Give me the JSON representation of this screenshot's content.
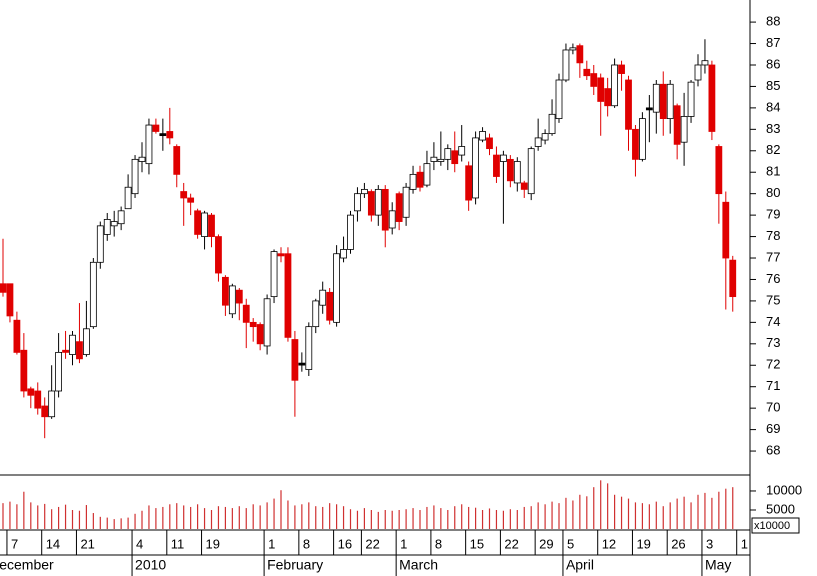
{
  "chart_data": {
    "type": "candlestick",
    "open": [
      75.8,
      75.8,
      74.1,
      72.7,
      70.9,
      70.8,
      70.1,
      69.6,
      70.8,
      72.7,
      72.5,
      73.1,
      72.5,
      73.8,
      76.8,
      78.1,
      78.5,
      78.6,
      79.3,
      80.0,
      81.5,
      81.4,
      83.2,
      82.8,
      82.9,
      82.2,
      80.1,
      79.8,
      79.2,
      78.0,
      79.0,
      78.0,
      76.1,
      74.4,
      75.5,
      74.8,
      74.0,
      73.9,
      72.9,
      75.2,
      77.2,
      77.2,
      73.2,
      72.1,
      71.8,
      73.8,
      74.8,
      75.4,
      74.0,
      77.0,
      77.4,
      79.2,
      80.0,
      80.1,
      79.0,
      80.2,
      78.4,
      80.0,
      78.9,
      80.2,
      81.0,
      80.4,
      81.5,
      81.5,
      81.6,
      82.0,
      81.8,
      81.3,
      79.8,
      82.5,
      82.6,
      81.8,
      81.5,
      81.6,
      80.5,
      80.5,
      80.0,
      82.2,
      82.5,
      82.8,
      83.5,
      85.3,
      86.7,
      86.9,
      85.8,
      85.6,
      85.4,
      84.9,
      84.1,
      86.0,
      85.3,
      83.0,
      81.6,
      84.0,
      83.8,
      85.1,
      83.5,
      84.1,
      82.4,
      83.6,
      85.3,
      86.0,
      86.0,
      82.2,
      79.6,
      76.9
    ],
    "high": [
      77.9,
      75.8,
      74.5,
      73.5,
      71.0,
      71.2,
      70.5,
      72.0,
      73.5,
      73.6,
      73.6,
      74.9,
      75.0,
      77.0,
      78.7,
      79.1,
      79.2,
      79.4,
      80.9,
      81.8,
      82.4,
      83.5,
      83.5,
      83.5,
      84.0,
      82.3,
      80.5,
      80.0,
      79.3,
      79.2,
      79.1,
      78.1,
      76.2,
      75.8,
      75.6,
      75.1,
      74.2,
      74.0,
      75.3,
      77.4,
      77.5,
      77.5,
      73.6,
      72.6,
      74.0,
      75.1,
      75.9,
      75.6,
      77.6,
      78.0,
      79.2,
      80.3,
      80.5,
      80.2,
      80.4,
      80.4,
      79.6,
      80.1,
      80.5,
      81.3,
      81.3,
      82.0,
      82.4,
      82.9,
      82.3,
      82.9,
      83.2,
      81.5,
      82.9,
      83.1,
      82.8,
      82.2,
      82.0,
      81.8,
      81.7,
      80.6,
      82.2,
      83.5,
      83.0,
      84.4,
      85.6,
      87.0,
      87.0,
      87.0,
      86.2,
      86.0,
      85.6,
      85.4,
      86.3,
      86.2,
      85.5,
      83.2,
      83.8,
      84.6,
      85.3,
      85.7,
      85.3,
      84.2,
      84.7,
      85.3,
      86.5,
      87.2,
      86.2,
      82.3,
      80.1,
      77.1
    ],
    "low": [
      75.2,
      74.0,
      72.5,
      70.5,
      70.0,
      69.7,
      68.6,
      69.5,
      70.5,
      72.3,
      72.0,
      72.1,
      72.4,
      73.7,
      76.5,
      77.8,
      78.0,
      78.3,
      79.3,
      79.8,
      81.0,
      80.9,
      82.8,
      82.0,
      82.3,
      80.3,
      78.5,
      79.0,
      77.9,
      77.4,
      77.5,
      75.9,
      74.3,
      74.2,
      74.1,
      72.8,
      73.1,
      72.7,
      72.5,
      74.9,
      76.8,
      73.1,
      69.6,
      71.7,
      71.5,
      73.5,
      74.4,
      73.9,
      73.8,
      76.8,
      77.2,
      78.7,
      79.8,
      78.7,
      78.5,
      77.5,
      78.1,
      78.3,
      78.5,
      80.0,
      80.1,
      80.3,
      81.1,
      81.3,
      81.1,
      81.0,
      81.5,
      79.2,
      79.5,
      82.4,
      81.8,
      80.5,
      78.6,
      80.3,
      80.1,
      79.8,
      79.7,
      82.0,
      82.3,
      82.7,
      83.3,
      85.2,
      86.5,
      85.4,
      85.3,
      84.6,
      82.7,
      83.6,
      84.0,
      84.8,
      82.0,
      80.8,
      81.5,
      82.4,
      82.8,
      82.7,
      82.8,
      81.6,
      81.3,
      83.3,
      85.0,
      85.6,
      82.5,
      78.6,
      74.6,
      74.5
    ],
    "close": [
      75.4,
      74.3,
      72.6,
      70.8,
      70.6,
      70.0,
      69.6,
      70.8,
      72.6,
      72.6,
      73.4,
      72.3,
      73.7,
      76.8,
      78.5,
      78.8,
      78.7,
      79.2,
      80.3,
      81.6,
      81.7,
      83.2,
      82.9,
      82.8,
      82.6,
      80.9,
      79.8,
      79.6,
      78.1,
      79.1,
      78.0,
      76.3,
      74.8,
      75.7,
      74.9,
      74.0,
      73.8,
      73.0,
      75.1,
      77.3,
      77.1,
      73.3,
      71.3,
      72.1,
      73.8,
      75.0,
      75.5,
      74.1,
      77.2,
      77.4,
      79.0,
      80.0,
      80.2,
      79.0,
      80.2,
      78.3,
      79.2,
      78.7,
      80.3,
      80.9,
      80.3,
      81.4,
      81.7,
      81.6,
      82.1,
      81.4,
      82.2,
      79.7,
      82.6,
      82.9,
      82.1,
      80.8,
      81.8,
      80.6,
      81.5,
      80.2,
      82.1,
      82.6,
      82.8,
      83.7,
      85.3,
      86.7,
      86.8,
      86.1,
      85.5,
      85.0,
      84.3,
      84.1,
      86.0,
      85.6,
      83.0,
      81.6,
      83.5,
      84.0,
      85.1,
      83.5,
      85.1,
      82.3,
      83.6,
      85.2,
      86.0,
      86.2,
      82.9,
      80.0,
      77.0,
      75.2
    ],
    "volume": [
      6800,
      7200,
      6500,
      9800,
      7000,
      6200,
      6600,
      5200,
      5800,
      6400,
      5000,
      4800,
      6300,
      4200,
      3200,
      3000,
      2600,
      2800,
      3000,
      4000,
      4800,
      6200,
      5500,
      5800,
      6500,
      6800,
      6200,
      5800,
      6500,
      5500,
      5000,
      6000,
      5800,
      5500,
      6000,
      5500,
      6500,
      6200,
      7000,
      8000,
      10200,
      7500,
      6200,
      6500,
      7000,
      6000,
      5800,
      6800,
      6500,
      6000,
      5200,
      4800,
      5500,
      5000,
      4500,
      5000,
      4800,
      5000,
      5200,
      5500,
      5000,
      5800,
      6200,
      5500,
      5000,
      6000,
      6500,
      5800,
      5600,
      5000,
      5400,
      5000,
      4800,
      5200,
      5000,
      5800,
      6000,
      7000,
      6500,
      7200,
      6800,
      8200,
      7500,
      9000,
      8600,
      11000,
      12800,
      12000,
      9000,
      8500,
      8000,
      7000,
      6800,
      6500,
      7200,
      6000,
      7000,
      8000,
      8500,
      7000,
      9000,
      9500,
      8200,
      9800,
      10600,
      11000
    ],
    "ylim": [
      66.93,
      89.03
    ],
    "yticks": [
      68,
      69,
      70,
      71,
      72,
      73,
      74,
      75,
      76,
      77,
      78,
      79,
      80,
      81,
      82,
      83,
      84,
      85,
      86,
      87,
      88
    ],
    "volume_ylim": [
      0,
      14200
    ],
    "volume_yticks": [
      5000,
      10000
    ],
    "volume_multiplier_label": "x10000",
    "xticks": [
      {
        "value": 1,
        "label": "7"
      },
      {
        "value": 6,
        "label": "14"
      },
      {
        "value": 11,
        "label": "21"
      },
      {
        "value": 19,
        "label": "4"
      },
      {
        "value": 24,
        "label": "11"
      },
      {
        "value": 29,
        "label": "19"
      },
      {
        "value": 38,
        "label": "1"
      },
      {
        "value": 43,
        "label": "8"
      },
      {
        "value": 48,
        "label": "16"
      },
      {
        "value": 52,
        "label": "22"
      },
      {
        "value": 57,
        "label": "1"
      },
      {
        "value": 62,
        "label": "8"
      },
      {
        "value": 67,
        "label": "15"
      },
      {
        "value": 72,
        "label": "22"
      },
      {
        "value": 77,
        "label": "29"
      },
      {
        "value": 81,
        "label": "5"
      },
      {
        "value": 86,
        "label": "12"
      },
      {
        "value": 91,
        "label": "19"
      },
      {
        "value": 96,
        "label": "26"
      },
      {
        "value": 101,
        "label": "3"
      },
      {
        "value": 106,
        "label": "1"
      }
    ],
    "month_labels": [
      {
        "value": -2,
        "label": "December"
      },
      {
        "value": 19,
        "label": "2010"
      },
      {
        "value": 38,
        "label": "February"
      },
      {
        "value": 57,
        "label": "March"
      },
      {
        "value": 81,
        "label": "April"
      },
      {
        "value": 101,
        "label": "May"
      }
    ],
    "up_color": "#ffffff",
    "down_color": "#e00000",
    "doji_color": "#000000",
    "volume_color": "#d03030"
  }
}
